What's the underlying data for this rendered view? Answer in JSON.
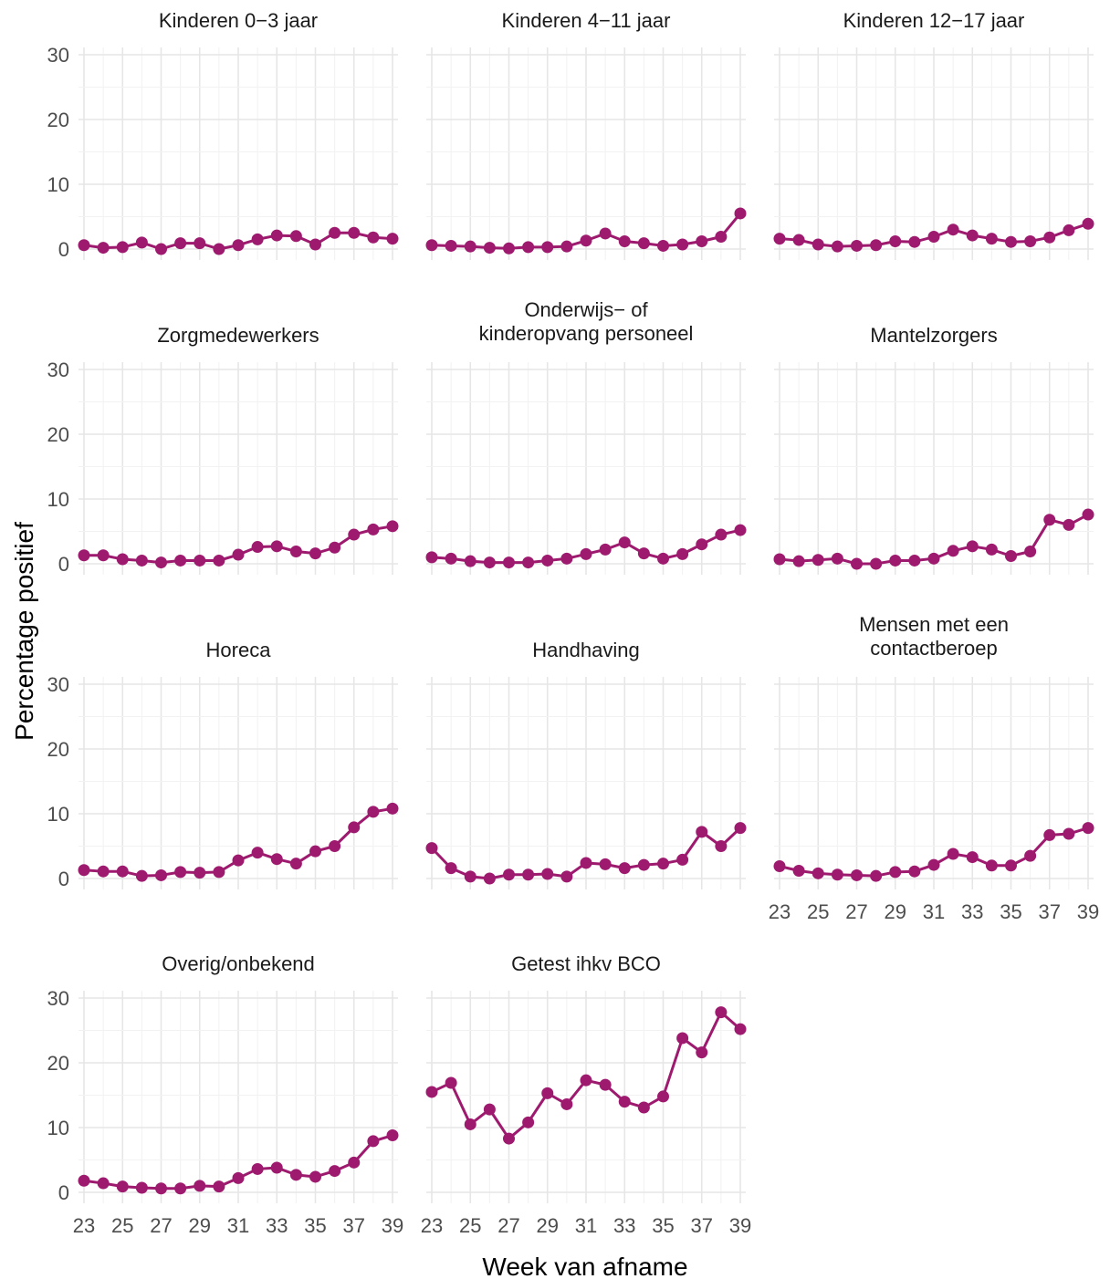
{
  "chart_data": {
    "type": "line",
    "xlabel": "Week van afname",
    "ylabel": "Percentage positief",
    "x": [
      23,
      24,
      25,
      26,
      27,
      28,
      29,
      30,
      31,
      32,
      33,
      34,
      35,
      36,
      37,
      38,
      39
    ],
    "xlim": [
      23,
      39
    ],
    "ylim": [
      0,
      30
    ],
    "xticks": [
      23,
      25,
      27,
      29,
      31,
      33,
      35,
      37,
      39
    ],
    "yticks": [
      0,
      10,
      20,
      30
    ],
    "grid": true,
    "color": "#9e1a6e",
    "panels": [
      {
        "title": [
          "Kinderen 0−3 jaar"
        ],
        "values": [
          0.6,
          0.2,
          0.3,
          1.0,
          0.0,
          0.9,
          0.9,
          0.0,
          0.6,
          1.5,
          2.1,
          2.0,
          0.7,
          2.5,
          2.5,
          1.8,
          1.6
        ]
      },
      {
        "title": [
          "Kinderen 4−11 jaar"
        ],
        "values": [
          0.6,
          0.5,
          0.4,
          0.2,
          0.1,
          0.3,
          0.3,
          0.4,
          1.3,
          2.4,
          1.2,
          0.9,
          0.5,
          0.7,
          1.2,
          1.9,
          5.5
        ]
      },
      {
        "title": [
          "Kinderen 12−17 jaar"
        ],
        "values": [
          1.6,
          1.4,
          0.7,
          0.4,
          0.5,
          0.6,
          1.2,
          1.1,
          1.9,
          3.0,
          2.1,
          1.6,
          1.1,
          1.2,
          1.8,
          2.9,
          3.9
        ]
      },
      {
        "title": [
          "Zorgmedewerkers"
        ],
        "values": [
          1.3,
          1.3,
          0.7,
          0.5,
          0.2,
          0.5,
          0.5,
          0.5,
          1.4,
          2.6,
          2.7,
          1.9,
          1.6,
          2.5,
          4.5,
          5.3,
          5.8
        ]
      },
      {
        "title": [
          "Onderwijs− of",
          "kinderopvang personeel"
        ],
        "values": [
          1.0,
          0.8,
          0.4,
          0.2,
          0.2,
          0.2,
          0.5,
          0.8,
          1.5,
          2.2,
          3.3,
          1.6,
          0.8,
          1.5,
          3.0,
          4.5,
          5.2
        ]
      },
      {
        "title": [
          "Mantelzorgers"
        ],
        "values": [
          0.7,
          0.4,
          0.6,
          0.8,
          0.0,
          0.0,
          0.5,
          0.5,
          0.8,
          2.0,
          2.7,
          2.2,
          1.2,
          1.9,
          6.8,
          6.0,
          7.6
        ]
      },
      {
        "title": [
          "Horeca"
        ],
        "values": [
          1.3,
          1.1,
          1.1,
          0.4,
          0.5,
          1.0,
          0.9,
          1.0,
          2.8,
          4.0,
          3.0,
          2.3,
          4.2,
          5.0,
          7.9,
          10.3,
          10.8
        ]
      },
      {
        "title": [
          "Handhaving"
        ],
        "values": [
          4.7,
          1.6,
          0.3,
          0.0,
          0.6,
          0.6,
          0.7,
          0.3,
          2.4,
          2.2,
          1.6,
          2.1,
          2.3,
          2.9,
          7.2,
          5.0,
          7.8
        ]
      },
      {
        "title": [
          "Mensen met een",
          "contactberoep"
        ],
        "values": [
          1.9,
          1.2,
          0.8,
          0.6,
          0.5,
          0.4,
          1.0,
          1.1,
          2.1,
          3.8,
          3.3,
          2.0,
          2.0,
          3.5,
          6.7,
          6.9,
          7.8
        ]
      },
      {
        "title": [
          "Overig/onbekend"
        ],
        "values": [
          1.8,
          1.4,
          0.9,
          0.7,
          0.6,
          0.6,
          1.0,
          0.9,
          2.2,
          3.6,
          3.8,
          2.7,
          2.4,
          3.3,
          4.6,
          7.9,
          8.8
        ]
      },
      {
        "title": [
          "Getest ihkv BCO"
        ],
        "values": [
          15.5,
          16.9,
          10.5,
          12.8,
          8.3,
          10.8,
          15.3,
          13.6,
          17.3,
          16.6,
          14.0,
          13.1,
          14.8,
          23.8,
          21.6,
          27.8,
          25.2
        ]
      }
    ]
  }
}
